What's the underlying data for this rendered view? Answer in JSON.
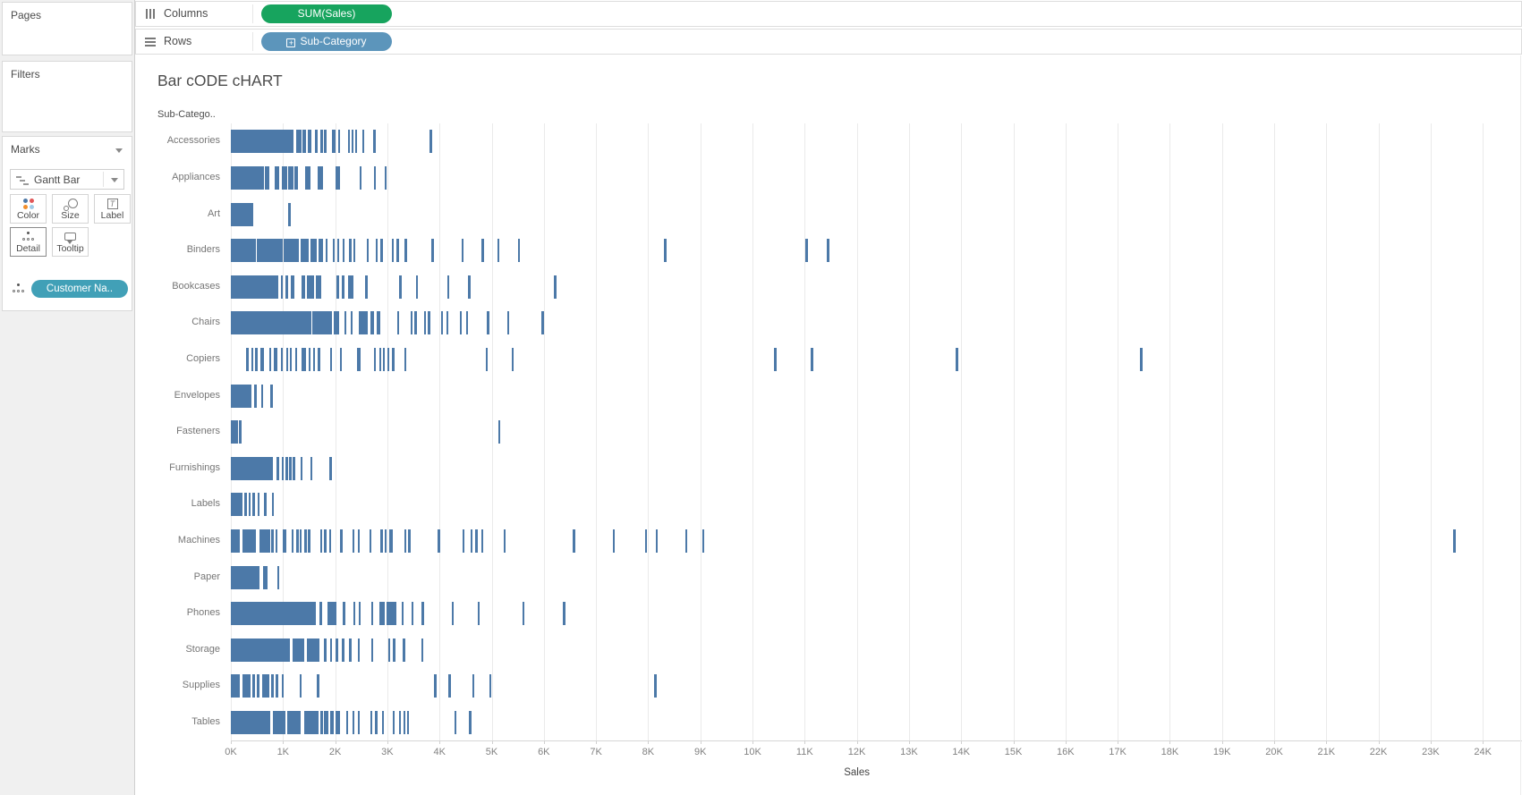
{
  "sidebar": {
    "pages": {
      "label": "Pages"
    },
    "filters": {
      "label": "Filters"
    },
    "marks": {
      "title": "Marks",
      "mark_type": "Gantt Bar",
      "buttons": [
        {
          "label": "Color"
        },
        {
          "label": "Size"
        },
        {
          "label": "Label",
          "glyph": "T"
        },
        {
          "label": "Detail",
          "selected": true
        },
        {
          "label": "Tooltip"
        }
      ],
      "detail_pill": {
        "field": "Customer Na..",
        "color": "#41A0B7"
      }
    }
  },
  "shelves": {
    "columns": {
      "label": "Columns",
      "pill": {
        "field": "SUM(Sales)",
        "color": "#17A45E"
      }
    },
    "rows": {
      "label": "Rows",
      "pill": {
        "field": "Sub-Category",
        "color": "#5C95BB",
        "expand_glyph": "+"
      }
    }
  },
  "sheet": {
    "title": "Bar cODE cHART",
    "row_field_header": "Sub-Catego.."
  },
  "chart_data": {
    "type": "gantt",
    "subtype": "barcode",
    "title": "Bar cODE cHART",
    "xlabel": "Sales",
    "ylabel": "Sub-Category",
    "xlim": [
      0,
      24.75
    ],
    "x_unit": "thousands",
    "grid": "vertical, every 1K",
    "bar_color": "#4C79A8",
    "x_tick_values": [
      0,
      1,
      2,
      3,
      4,
      5,
      6,
      7,
      8,
      9,
      10,
      11,
      12,
      13,
      14,
      15,
      16,
      17,
      18,
      19,
      20,
      21,
      22,
      23,
      24
    ],
    "x_ticks": [
      "0K",
      "1K",
      "2K",
      "3K",
      "4K",
      "5K",
      "6K",
      "7K",
      "8K",
      "9K",
      "10K",
      "11K",
      "12K",
      "13K",
      "14K",
      "15K",
      "16K",
      "17K",
      "18K",
      "19K",
      "20K",
      "21K",
      "22K",
      "23K",
      "24K"
    ],
    "categories": [
      "Accessories",
      "Appliances",
      "Art",
      "Binders",
      "Bookcases",
      "Chairs",
      "Copiers",
      "Envelopes",
      "Fasteners",
      "Furnishings",
      "Labels",
      "Machines",
      "Paper",
      "Phones",
      "Storage",
      "Supplies",
      "Tables"
    ],
    "series": [
      {
        "category": "Accessories",
        "segments_k": [
          [
            0,
            1.2
          ],
          [
            1.26,
            1.35
          ],
          [
            1.37,
            1.44
          ],
          [
            1.47,
            1.54
          ],
          [
            1.62,
            1.67
          ],
          [
            1.72,
            1.76
          ],
          [
            1.79,
            1.83
          ],
          [
            1.94,
            2.0
          ],
          [
            2.05,
            2.09
          ],
          [
            2.24,
            2.28
          ],
          [
            2.31,
            2.35
          ],
          [
            2.38,
            2.42
          ],
          [
            2.52,
            2.56
          ],
          [
            2.73,
            2.77
          ],
          [
            3.81,
            3.86
          ]
        ]
      },
      {
        "category": "Appliances",
        "segments_k": [
          [
            0,
            0.63
          ],
          [
            0.65,
            0.73
          ],
          [
            0.84,
            0.92
          ],
          [
            0.97,
            1.08
          ],
          [
            1.1,
            1.2
          ],
          [
            1.22,
            1.29
          ],
          [
            1.43,
            1.53
          ],
          [
            1.67,
            1.76
          ],
          [
            2.0,
            2.1
          ],
          [
            2.47,
            2.51
          ],
          [
            2.74,
            2.78
          ],
          [
            2.95,
            2.99
          ]
        ]
      },
      {
        "category": "Art",
        "segments_k": [
          [
            0,
            0.43
          ],
          [
            1.1,
            1.14
          ]
        ]
      },
      {
        "category": "Binders",
        "segments_k": [
          [
            0,
            0.48
          ],
          [
            0.5,
            0.99
          ],
          [
            1.01,
            1.3
          ],
          [
            1.33,
            1.5
          ],
          [
            1.53,
            1.65
          ],
          [
            1.68,
            1.77
          ],
          [
            1.81,
            1.85
          ],
          [
            1.95,
            1.99
          ],
          [
            2.04,
            2.08
          ],
          [
            2.14,
            2.18
          ],
          [
            2.27,
            2.31
          ],
          [
            2.35,
            2.39
          ],
          [
            2.6,
            2.64
          ],
          [
            2.78,
            2.82
          ],
          [
            2.87,
            2.91
          ],
          [
            3.08,
            3.12
          ],
          [
            3.18,
            3.22
          ],
          [
            3.33,
            3.37
          ],
          [
            3.85,
            3.89
          ],
          [
            4.42,
            4.46
          ],
          [
            4.81,
            4.85
          ],
          [
            5.11,
            5.15
          ],
          [
            5.5,
            5.54
          ],
          [
            8.3,
            8.35
          ],
          [
            11.02,
            11.07
          ],
          [
            11.42,
            11.47
          ]
        ]
      },
      {
        "category": "Bookcases",
        "segments_k": [
          [
            0,
            0.91
          ],
          [
            0.96,
            1.0
          ],
          [
            1.05,
            1.1
          ],
          [
            1.15,
            1.22
          ],
          [
            1.36,
            1.43
          ],
          [
            1.46,
            1.6
          ],
          [
            1.63,
            1.73
          ],
          [
            2.03,
            2.08
          ],
          [
            2.13,
            2.18
          ],
          [
            2.24,
            2.35
          ],
          [
            2.58,
            2.62
          ],
          [
            3.23,
            3.27
          ],
          [
            3.55,
            3.59
          ],
          [
            4.15,
            4.19
          ],
          [
            4.55,
            4.59
          ],
          [
            6.2,
            6.25
          ]
        ]
      },
      {
        "category": "Chairs",
        "segments_k": [
          [
            0,
            1.54
          ],
          [
            1.56,
            1.93
          ],
          [
            1.97,
            2.08
          ],
          [
            2.18,
            2.22
          ],
          [
            2.3,
            2.34
          ],
          [
            2.46,
            2.62
          ],
          [
            2.67,
            2.75
          ],
          [
            2.79,
            2.87
          ],
          [
            3.19,
            3.23
          ],
          [
            3.44,
            3.48
          ],
          [
            3.52,
            3.56
          ],
          [
            3.7,
            3.74
          ],
          [
            3.78,
            3.82
          ],
          [
            4.03,
            4.07
          ],
          [
            4.13,
            4.17
          ],
          [
            4.39,
            4.43
          ],
          [
            4.51,
            4.55
          ],
          [
            4.91,
            4.95
          ],
          [
            5.3,
            5.34
          ],
          [
            5.96,
            6.0
          ]
        ]
      },
      {
        "category": "Copiers",
        "segments_k": [
          [
            0.3,
            0.34
          ],
          [
            0.39,
            0.43
          ],
          [
            0.47,
            0.51
          ],
          [
            0.56,
            0.63
          ],
          [
            0.73,
            0.77
          ],
          [
            0.82,
            0.89
          ],
          [
            0.96,
            1.0
          ],
          [
            1.06,
            1.1
          ],
          [
            1.13,
            1.17
          ],
          [
            1.23,
            1.27
          ],
          [
            1.36,
            1.44
          ],
          [
            1.49,
            1.53
          ],
          [
            1.57,
            1.61
          ],
          [
            1.67,
            1.71
          ],
          [
            1.9,
            1.94
          ],
          [
            2.09,
            2.13
          ],
          [
            2.42,
            2.49
          ],
          [
            2.74,
            2.78
          ],
          [
            2.84,
            2.88
          ],
          [
            2.91,
            2.95
          ],
          [
            3.0,
            3.04
          ],
          [
            3.09,
            3.13
          ],
          [
            3.32,
            3.36
          ],
          [
            4.88,
            4.92
          ],
          [
            5.38,
            5.42
          ],
          [
            10.41,
            10.46
          ],
          [
            11.12,
            11.17
          ],
          [
            13.9,
            13.95
          ],
          [
            17.43,
            17.48
          ]
        ]
      },
      {
        "category": "Envelopes",
        "segments_k": [
          [
            0,
            0.4
          ],
          [
            0.45,
            0.49
          ],
          [
            0.58,
            0.62
          ],
          [
            0.76,
            0.8
          ]
        ]
      },
      {
        "category": "Fasteners",
        "segments_k": [
          [
            0,
            0.13
          ],
          [
            0.16,
            0.2
          ],
          [
            5.13,
            5.17
          ]
        ]
      },
      {
        "category": "Furnishings",
        "segments_k": [
          [
            0,
            0.8
          ],
          [
            0.88,
            0.92
          ],
          [
            0.97,
            1.01
          ],
          [
            1.05,
            1.09
          ],
          [
            1.12,
            1.16
          ],
          [
            1.19,
            1.23
          ],
          [
            1.33,
            1.37
          ],
          [
            1.52,
            1.56
          ],
          [
            1.89,
            1.93
          ]
        ]
      },
      {
        "category": "Labels",
        "segments_k": [
          [
            0,
            0.22
          ],
          [
            0.26,
            0.3
          ],
          [
            0.34,
            0.38
          ],
          [
            0.42,
            0.46
          ],
          [
            0.51,
            0.55
          ],
          [
            0.64,
            0.68
          ],
          [
            0.79,
            0.83
          ]
        ]
      },
      {
        "category": "Machines",
        "segments_k": [
          [
            0,
            0.18
          ],
          [
            0.22,
            0.48
          ],
          [
            0.55,
            0.75
          ],
          [
            0.78,
            0.82
          ],
          [
            0.85,
            0.89
          ],
          [
            1.0,
            1.07
          ],
          [
            1.16,
            1.2
          ],
          [
            1.26,
            1.3
          ],
          [
            1.32,
            1.36
          ],
          [
            1.41,
            1.45
          ],
          [
            1.48,
            1.52
          ],
          [
            1.71,
            1.75
          ],
          [
            1.79,
            1.83
          ],
          [
            1.88,
            1.92
          ],
          [
            2.1,
            2.14
          ],
          [
            2.33,
            2.37
          ],
          [
            2.43,
            2.47
          ],
          [
            2.66,
            2.7
          ],
          [
            2.87,
            2.91
          ],
          [
            2.95,
            2.99
          ],
          [
            3.03,
            3.11
          ],
          [
            3.32,
            3.36
          ],
          [
            3.4,
            3.44
          ],
          [
            3.97,
            4.01
          ],
          [
            4.44,
            4.48
          ],
          [
            4.59,
            4.63
          ],
          [
            4.69,
            4.73
          ],
          [
            4.8,
            4.84
          ],
          [
            5.23,
            5.27
          ],
          [
            6.56,
            6.6
          ],
          [
            7.32,
            7.36
          ],
          [
            7.94,
            7.98
          ],
          [
            8.14,
            8.18
          ],
          [
            8.71,
            8.75
          ],
          [
            9.04,
            9.08
          ],
          [
            23.43,
            23.48
          ]
        ]
      },
      {
        "category": "Paper",
        "segments_k": [
          [
            0,
            0.55
          ],
          [
            0.61,
            0.71
          ],
          [
            0.89,
            0.93
          ]
        ]
      },
      {
        "category": "Phones",
        "segments_k": [
          [
            0,
            1.63
          ],
          [
            1.7,
            1.74
          ],
          [
            1.85,
            2.02
          ],
          [
            2.15,
            2.19
          ],
          [
            2.35,
            2.39
          ],
          [
            2.45,
            2.49
          ],
          [
            2.69,
            2.73
          ],
          [
            2.85,
            2.95
          ],
          [
            2.98,
            3.18
          ],
          [
            3.27,
            3.31
          ],
          [
            3.46,
            3.5
          ],
          [
            3.66,
            3.7
          ],
          [
            4.23,
            4.27
          ],
          [
            4.73,
            4.77
          ],
          [
            5.59,
            5.63
          ],
          [
            6.37,
            6.41
          ]
        ]
      },
      {
        "category": "Storage",
        "segments_k": [
          [
            0,
            1.14
          ],
          [
            1.18,
            1.41
          ],
          [
            1.45,
            1.7
          ],
          [
            1.79,
            1.83
          ],
          [
            1.9,
            1.94
          ],
          [
            2.01,
            2.05
          ],
          [
            2.13,
            2.17
          ],
          [
            2.27,
            2.31
          ],
          [
            2.43,
            2.47
          ],
          [
            2.69,
            2.73
          ],
          [
            3.02,
            3.06
          ],
          [
            3.11,
            3.15
          ],
          [
            3.3,
            3.34
          ],
          [
            3.65,
            3.69
          ]
        ]
      },
      {
        "category": "Supplies",
        "segments_k": [
          [
            0,
            0.17
          ],
          [
            0.22,
            0.38
          ],
          [
            0.42,
            0.46
          ],
          [
            0.5,
            0.54
          ],
          [
            0.6,
            0.73
          ],
          [
            0.78,
            0.82
          ],
          [
            0.86,
            0.9
          ],
          [
            0.97,
            1.01
          ],
          [
            1.32,
            1.36
          ],
          [
            1.65,
            1.69
          ],
          [
            3.9,
            3.94
          ],
          [
            4.17,
            4.21
          ],
          [
            4.63,
            4.67
          ],
          [
            4.95,
            4.99
          ],
          [
            8.11,
            8.16
          ]
        ]
      },
      {
        "category": "Tables",
        "segments_k": [
          [
            0,
            0.76
          ],
          [
            0.8,
            1.05
          ],
          [
            1.08,
            1.34
          ],
          [
            1.4,
            1.68
          ],
          [
            1.72,
            1.76
          ],
          [
            1.79,
            1.87
          ],
          [
            1.91,
            1.97
          ],
          [
            2.01,
            2.09
          ],
          [
            2.21,
            2.25
          ],
          [
            2.33,
            2.37
          ],
          [
            2.43,
            2.47
          ],
          [
            2.67,
            2.71
          ],
          [
            2.77,
            2.81
          ],
          [
            2.9,
            2.94
          ],
          [
            3.1,
            3.14
          ],
          [
            3.22,
            3.26
          ],
          [
            3.31,
            3.35
          ],
          [
            3.38,
            3.42
          ],
          [
            4.29,
            4.33
          ],
          [
            4.57,
            4.61
          ]
        ]
      }
    ]
  },
  "colors": {
    "bar": "#4C79A8",
    "measure_pill_green": "#17A45E",
    "dimension_pill_blue": "#5C95BB",
    "detail_pill_teal": "#41A0B7",
    "panel_bg": "#f0f0f0",
    "color_icon_dots": [
      "#4E79A7",
      "#E15759",
      "#F28E2B",
      "#A0CBE8"
    ]
  }
}
